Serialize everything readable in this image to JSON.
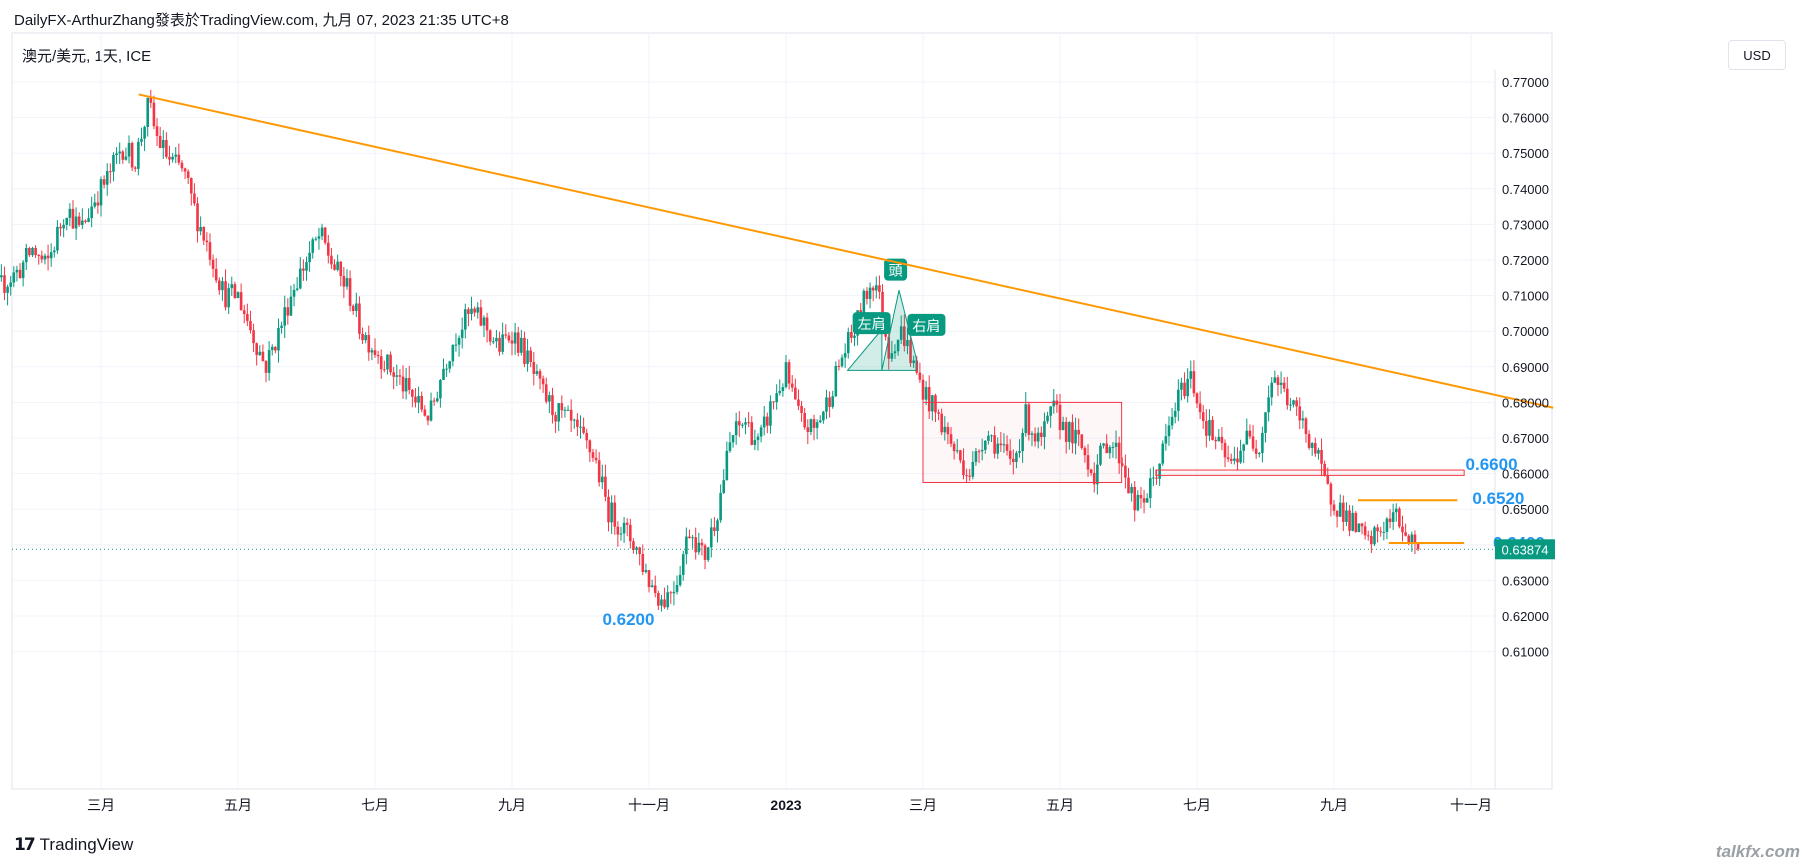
{
  "header": {
    "title": "DailyFX-ArthurZhang發表於TradingView.com,  九月 07, 2023 21:35 UTC+8"
  },
  "symbol_label": "澳元/美元, 1天, ICE",
  "currency_button": "USD",
  "brand": {
    "logo_glyph": "17",
    "name": "TradingView"
  },
  "watermark": "talkfx.com",
  "colors": {
    "up": "#089981",
    "down": "#f23645",
    "trendline": "#ff9800",
    "box": "#f23645",
    "level_text": "#2196f3",
    "price_badge": "#089981",
    "grid": "#f0f3fa"
  },
  "chart_data": {
    "type": "candlestick",
    "title": "",
    "y_axis": {
      "ylim": [
        0.6,
        0.775
      ],
      "ticks": [
        "0.61000",
        "0.62000",
        "0.63000",
        "0.64000",
        "0.65000",
        "0.66000",
        "0.67000",
        "0.68000",
        "0.69000",
        "0.70000",
        "0.71000",
        "0.72000",
        "0.73000",
        "0.74000",
        "0.75000",
        "0.76000",
        "0.77000"
      ]
    },
    "x_axis": {
      "ticks": [
        {
          "label": "三月",
          "month": 2.0
        },
        {
          "label": "五月",
          "month": 4.0
        },
        {
          "label": "七月",
          "month": 6.0
        },
        {
          "label": "九月",
          "month": 8.0
        },
        {
          "label": "十一月",
          "month": 10.0
        },
        {
          "label": "2023",
          "month": 12.0,
          "bold": true
        },
        {
          "label": "三月",
          "month": 14.0
        },
        {
          "label": "五月",
          "month": 16.0
        },
        {
          "label": "七月",
          "month": 18.0
        },
        {
          "label": "九月",
          "month": 20.0
        },
        {
          "label": "十一月",
          "month": 22.0
        }
      ]
    },
    "close_path": [
      [
        0.0,
        0.72
      ],
      [
        0.2,
        0.712
      ],
      [
        0.3,
        0.7
      ],
      [
        0.5,
        0.712
      ],
      [
        0.8,
        0.717
      ],
      [
        1.0,
        0.723
      ],
      [
        1.2,
        0.718
      ],
      [
        1.5,
        0.735
      ],
      [
        1.7,
        0.728
      ],
      [
        1.9,
        0.737
      ],
      [
        2.1,
        0.743
      ],
      [
        2.3,
        0.752
      ],
      [
        2.5,
        0.748
      ],
      [
        2.7,
        0.764
      ],
      [
        2.8,
        0.755
      ],
      [
        3.0,
        0.748
      ],
      [
        3.2,
        0.745
      ],
      [
        3.4,
        0.732
      ],
      [
        3.6,
        0.722
      ],
      [
        3.8,
        0.71
      ],
      [
        4.0,
        0.71
      ],
      [
        4.2,
        0.7
      ],
      [
        4.4,
        0.69
      ],
      [
        4.6,
        0.7
      ],
      [
        4.8,
        0.712
      ],
      [
        5.0,
        0.72
      ],
      [
        5.2,
        0.727
      ],
      [
        5.4,
        0.718
      ],
      [
        5.6,
        0.712
      ],
      [
        5.8,
        0.7
      ],
      [
        6.0,
        0.695
      ],
      [
        6.2,
        0.69
      ],
      [
        6.4,
        0.685
      ],
      [
        6.6,
        0.68
      ],
      [
        6.8,
        0.676
      ],
      [
        7.0,
        0.69
      ],
      [
        7.2,
        0.7
      ],
      [
        7.4,
        0.705
      ],
      [
        7.6,
        0.702
      ],
      [
        7.8,
        0.695
      ],
      [
        8.0,
        0.7
      ],
      [
        8.2,
        0.693
      ],
      [
        8.4,
        0.684
      ],
      [
        8.6,
        0.678
      ],
      [
        8.8,
        0.675
      ],
      [
        9.0,
        0.67
      ],
      [
        9.2,
        0.665
      ],
      [
        9.4,
        0.65
      ],
      [
        9.6,
        0.645
      ],
      [
        9.8,
        0.64
      ],
      [
        10.0,
        0.63
      ],
      [
        10.2,
        0.624
      ],
      [
        10.4,
        0.63
      ],
      [
        10.6,
        0.645
      ],
      [
        10.8,
        0.636
      ],
      [
        11.0,
        0.65
      ],
      [
        11.2,
        0.67
      ],
      [
        11.4,
        0.675
      ],
      [
        11.6,
        0.668
      ],
      [
        11.8,
        0.68
      ],
      [
        12.0,
        0.688
      ],
      [
        12.2,
        0.675
      ],
      [
        12.4,
        0.672
      ],
      [
        12.6,
        0.68
      ],
      [
        12.8,
        0.692
      ],
      [
        13.0,
        0.7
      ],
      [
        13.2,
        0.712
      ],
      [
        13.3,
        0.715
      ],
      [
        13.5,
        0.695
      ],
      [
        13.7,
        0.7
      ],
      [
        13.9,
        0.688
      ],
      [
        14.1,
        0.68
      ],
      [
        14.3,
        0.673
      ],
      [
        14.5,
        0.665
      ],
      [
        14.7,
        0.66
      ],
      [
        14.9,
        0.672
      ],
      [
        15.1,
        0.668
      ],
      [
        15.3,
        0.662
      ],
      [
        15.5,
        0.676
      ],
      [
        15.7,
        0.668
      ],
      [
        15.9,
        0.678
      ],
      [
        16.1,
        0.672
      ],
      [
        16.3,
        0.668
      ],
      [
        16.5,
        0.66
      ],
      [
        16.7,
        0.67
      ],
      [
        16.9,
        0.664
      ],
      [
        17.1,
        0.65
      ],
      [
        17.3,
        0.655
      ],
      [
        17.5,
        0.666
      ],
      [
        17.7,
        0.68
      ],
      [
        17.9,
        0.688
      ],
      [
        18.1,
        0.675
      ],
      [
        18.3,
        0.668
      ],
      [
        18.5,
        0.662
      ],
      [
        18.7,
        0.67
      ],
      [
        18.9,
        0.668
      ],
      [
        19.1,
        0.688
      ],
      [
        19.3,
        0.682
      ],
      [
        19.5,
        0.675
      ],
      [
        19.7,
        0.668
      ],
      [
        19.9,
        0.655
      ],
      [
        20.1,
        0.65
      ],
      [
        20.3,
        0.645
      ],
      [
        20.5,
        0.64
      ],
      [
        20.7,
        0.645
      ],
      [
        20.9,
        0.648
      ],
      [
        21.1,
        0.642
      ],
      [
        21.25,
        0.6387
      ]
    ],
    "trendline": {
      "x1": 2.55,
      "y1": 0.7665,
      "x2": 23.2,
      "y2": 0.6785
    },
    "horizontal_lines": [
      {
        "x1": 20.35,
        "x2": 21.8,
        "y": 0.6525
      },
      {
        "x1": 20.8,
        "x2": 21.9,
        "y": 0.6405
      }
    ],
    "boxes": [
      {
        "x1": 14.0,
        "x2": 16.9,
        "y1": 0.6575,
        "y2": 0.68
      },
      {
        "x1": 17.4,
        "x2": 21.9,
        "y1": 0.6595,
        "y2": 0.661
      }
    ],
    "head_shoulders": {
      "points": [
        [
          12.9,
          0.689
        ],
        [
          13.4,
          0.7005
        ],
        [
          13.4,
          0.689
        ],
        [
          13.65,
          0.7115
        ],
        [
          13.9,
          0.6925
        ],
        [
          13.9,
          0.689
        ]
      ],
      "labels": [
        {
          "text": "左肩",
          "x": 13.25,
          "y": 0.702
        },
        {
          "text": "頭",
          "x": 13.6,
          "y": 0.717
        },
        {
          "text": "右肩",
          "x": 14.05,
          "y": 0.7015
        }
      ]
    },
    "level_labels": [
      {
        "text": "0.6600",
        "x": 22.3,
        "y": 0.661
      },
      {
        "text": "0.6520",
        "x": 22.4,
        "y": 0.6515
      },
      {
        "text": "0.6400",
        "x": 22.7,
        "y": 0.639
      },
      {
        "text": "0.6200",
        "x": 9.7,
        "y": 0.6175
      }
    ],
    "last_price": {
      "value": 0.63874,
      "label": "0.63874"
    }
  }
}
